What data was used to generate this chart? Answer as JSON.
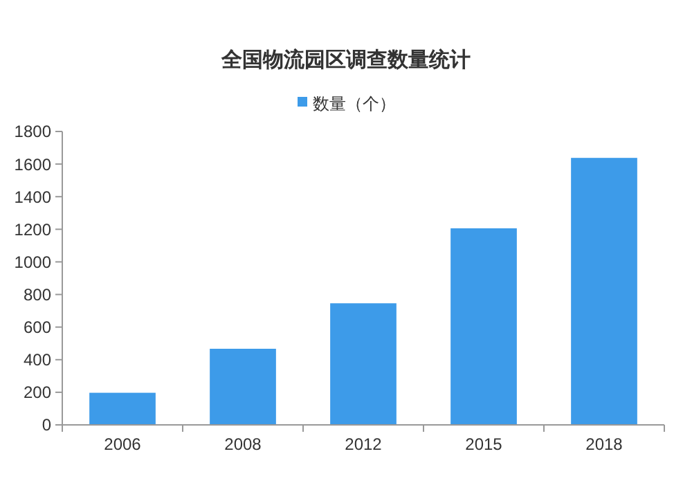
{
  "chart_data": {
    "type": "bar",
    "title": "全国物流园区调查数量统计",
    "categories": [
      "2006",
      "2008",
      "2012",
      "2015",
      "2018"
    ],
    "series": [
      {
        "name": "数量（个）",
        "color": "#3d9be9",
        "values": [
          197,
          467,
          746,
          1206,
          1638
        ]
      }
    ],
    "ylim": [
      0,
      1800
    ],
    "yticks": [
      0,
      200,
      400,
      600,
      800,
      1000,
      1200,
      1400,
      1600,
      1800
    ],
    "legend": "top"
  }
}
